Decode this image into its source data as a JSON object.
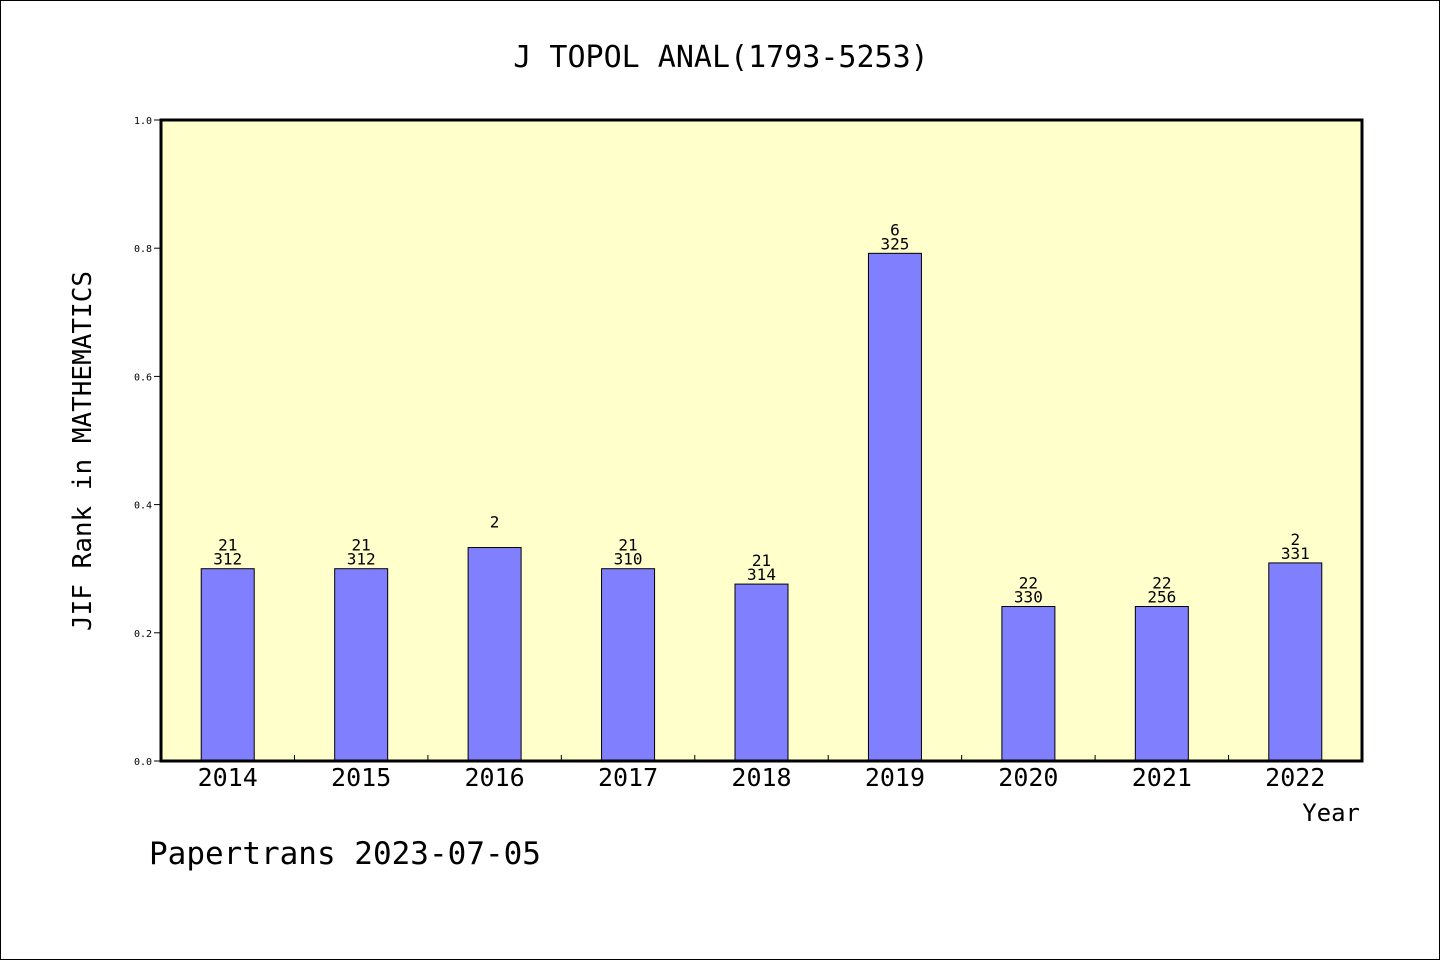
{
  "chart_data": {
    "type": "bar",
    "title": "J TOPOL ANAL(1793-5253)",
    "xlabel": "Year",
    "ylabel": "JIF Rank in MATHEMATICS",
    "categories": [
      "2014",
      "2015",
      "2016",
      "2017",
      "2018",
      "2019",
      "2020",
      "2021",
      "2022"
    ],
    "values": [
      0.3,
      0.3,
      0.333,
      0.3,
      0.276,
      0.792,
      0.241,
      0.241,
      0.309
    ],
    "bar_labels": [
      [
        "21",
        "312"
      ],
      [
        "21",
        "312"
      ],
      [
        "2",
        ""
      ],
      [
        "21",
        "310"
      ],
      [
        "21",
        "314"
      ],
      [
        "6",
        "325"
      ],
      [
        "22",
        "330"
      ],
      [
        "22",
        "256"
      ],
      [
        "2",
        "331"
      ]
    ],
    "ylim": [
      0,
      1
    ],
    "yticks": [
      "0.0",
      "0.2",
      "0.4",
      "0.6",
      "0.8",
      "1.0"
    ],
    "ytick_values": [
      0,
      0.2,
      0.4,
      0.6,
      0.8,
      1.0
    ],
    "grid": false,
    "colors": {
      "plot_background": "#ffffcc",
      "bar_fill": "#8080ff",
      "bar_edge": "#000000"
    }
  },
  "footer": "Papertrans 2023-07-05"
}
